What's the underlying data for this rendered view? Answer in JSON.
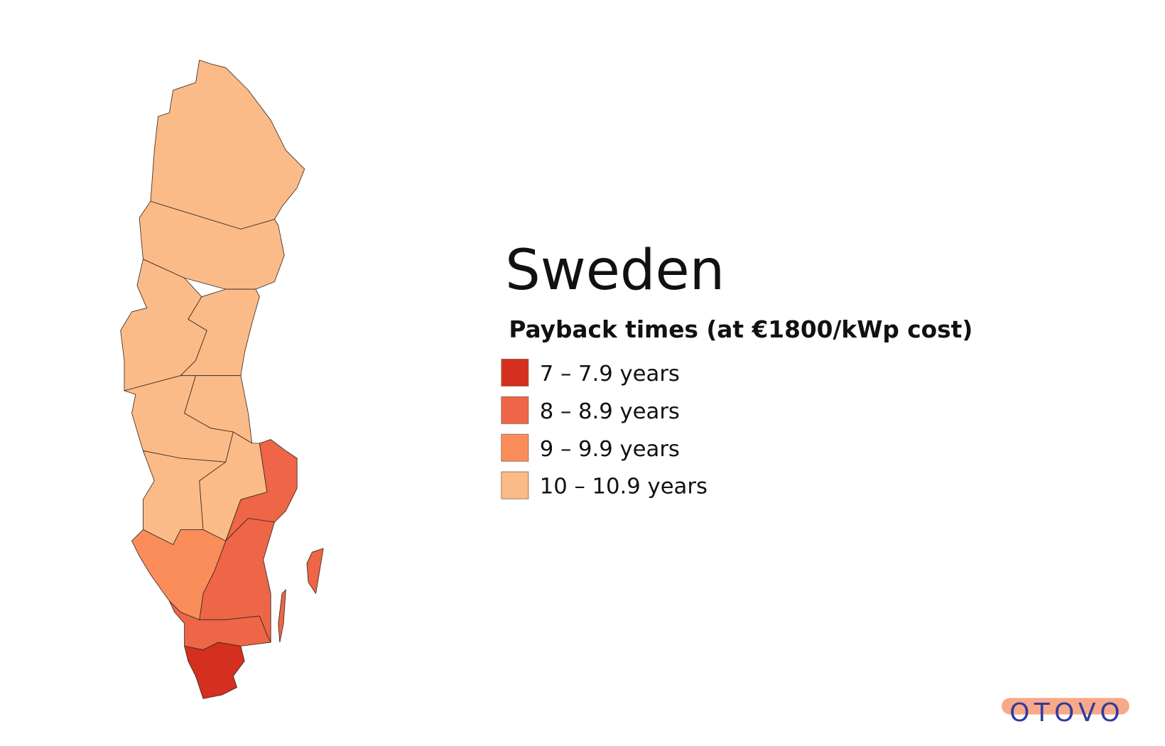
{
  "title": "Sweden",
  "subtitle": "Payback times (at €1800/kWp cost)",
  "legend": {
    "items": [
      {
        "label": "7 – 7.9 years",
        "color": "#d42f1f"
      },
      {
        "label": "8 – 8.9 years",
        "color": "#ee6547"
      },
      {
        "label": "9 – 9.9 years",
        "color": "#fb8d5a"
      },
      {
        "label": "10 – 10.9 years",
        "color": "#fbbb88"
      }
    ]
  },
  "logo": "OTOVO"
}
